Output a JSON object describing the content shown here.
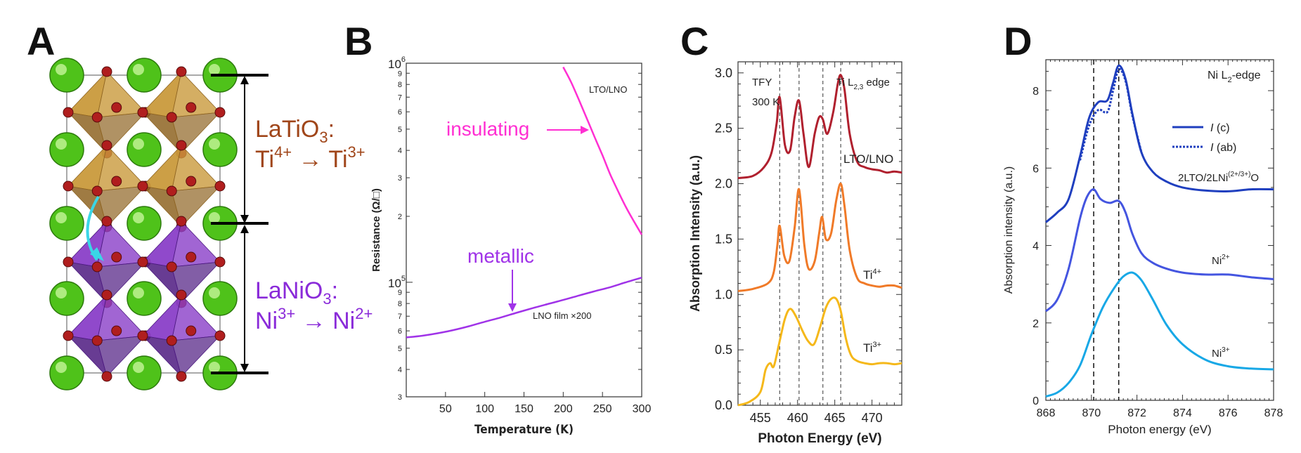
{
  "panels": {
    "A": {
      "letter": "A",
      "top_formula_line1": "LaTiO",
      "top_formula_sub": "3",
      "top_formula_colon": ":",
      "top_line2_a": "Ti",
      "top_line2_sup1": "4+",
      "top_line2_arrow": " → Ti",
      "top_line2_sup2": "3+",
      "bot_formula_line1": "LaNiO",
      "bot_formula_sub": "3",
      "bot_formula_colon": ":",
      "bot_line2_a": "Ni",
      "bot_line2_sup1": "3+",
      "bot_line2_arrow": " → Ni",
      "bot_line2_sup2": "2+",
      "colors": {
        "ti_octahedra": "#c99a3c",
        "ni_octahedra": "#8a3fc8",
        "la_atom": "#4fc21a",
        "o_atom": "#b01e1e",
        "ti_text": "#a0461a",
        "ni_text": "#8a2bd9",
        "arrow": "#3ad6e6"
      }
    },
    "B": {
      "letter": "B",
      "annotation_insulating": "insulating",
      "annotation_metallic": "metallic",
      "annotation_colors": {
        "insulating": "#ff2fd2",
        "metallic": "#a033e8"
      }
    },
    "C": {
      "letter": "C"
    },
    "D": {
      "letter": "D"
    }
  },
  "chart_data": [
    {
      "type": "line",
      "panel": "B",
      "xlabel": "Temperature (K)",
      "ylabel": "Resistance (Ω/□)",
      "xlim": [
        0,
        300
      ],
      "ylim": [
        30000,
        1000000
      ],
      "y_scale": "log",
      "x_ticks": [
        50,
        100,
        150,
        200,
        250,
        300
      ],
      "y_ticks": [
        {
          "value": 100000,
          "label": "10",
          "sup": "5"
        },
        {
          "value": 1000000,
          "label": "10",
          "sup": "6"
        }
      ],
      "y_minor_labels": [
        "3",
        "4",
        "5",
        "6",
        "7",
        "8",
        "9",
        "2",
        "3",
        "4",
        "5",
        "6",
        "7",
        "8",
        "9"
      ],
      "series": [
        {
          "name": "LTO/LNO",
          "color": "#ff2fd2",
          "x": [
            200,
            210,
            220,
            230,
            240,
            250,
            260,
            270,
            280,
            290,
            300
          ],
          "y": [
            960000,
            820000,
            680000,
            560000,
            460000,
            380000,
            310000,
            260000,
            220000,
            190000,
            165000
          ]
        },
        {
          "name": "LNO film ×200",
          "color": "#a033e8",
          "x": [
            0,
            20,
            40,
            60,
            80,
            100,
            120,
            140,
            160,
            180,
            200,
            220,
            240,
            260,
            280,
            300
          ],
          "y": [
            56000,
            57000,
            58500,
            60500,
            63000,
            66000,
            69000,
            72500,
            76000,
            79500,
            83000,
            87000,
            91000,
            95000,
            100000,
            105000
          ]
        }
      ]
    },
    {
      "type": "line",
      "panel": "C",
      "xlabel": "Photon Energy (eV)",
      "ylabel": "Absorption Intensity (a.u.)",
      "xlim": [
        452,
        474
      ],
      "ylim": [
        0,
        3.1
      ],
      "x_ticks": [
        455,
        460,
        465,
        470
      ],
      "y_ticks": [
        0.0,
        0.5,
        1.0,
        1.5,
        2.0,
        2.5,
        3.0
      ],
      "y_tick_labels": [
        "0.0",
        "0.5",
        "1.0",
        "1.5",
        "2.0",
        "2.5",
        "3.0"
      ],
      "annotations": [
        "TFY",
        "300 K",
        "Ti L2,3 edge"
      ],
      "dashed_lines_x": [
        457.6,
        460.2,
        463.4,
        465.8
      ],
      "series": [
        {
          "name": "LTO/LNO",
          "color": "#b0202e",
          "x": [
            452,
            454,
            455.5,
            456.5,
            457.2,
            457.6,
            458.3,
            459.0,
            459.6,
            460.2,
            460.8,
            461.5,
            462.3,
            462.9,
            463.4,
            464.0,
            464.8,
            465.4,
            465.8,
            466.3,
            467.0,
            468.0,
            469.0,
            470.0,
            471.0,
            472.0,
            473.0,
            474.0
          ],
          "y": [
            2.05,
            2.07,
            2.15,
            2.28,
            2.55,
            2.78,
            2.35,
            2.3,
            2.6,
            2.75,
            2.45,
            2.15,
            2.45,
            2.6,
            2.58,
            2.45,
            2.65,
            2.9,
            2.98,
            2.85,
            2.45,
            2.2,
            2.15,
            2.13,
            2.12,
            2.1,
            2.11,
            2.1
          ]
        },
        {
          "name": "Ti4+",
          "color": "#f07a28",
          "x": [
            452,
            454,
            456,
            456.8,
            457.3,
            457.6,
            458.2,
            458.9,
            459.6,
            460.2,
            460.9,
            461.5,
            462.3,
            462.9,
            463.3,
            463.8,
            464.5,
            465.2,
            465.8,
            466.3,
            467.0,
            468.0,
            469.0,
            470.0,
            471.0,
            472.0,
            473.0,
            474.0
          ],
          "y": [
            1.03,
            1.05,
            1.1,
            1.2,
            1.45,
            1.62,
            1.35,
            1.3,
            1.6,
            1.95,
            1.45,
            1.23,
            1.3,
            1.55,
            1.7,
            1.5,
            1.55,
            1.85,
            2.0,
            1.8,
            1.4,
            1.15,
            1.1,
            1.08,
            1.07,
            1.08,
            1.08,
            1.06
          ]
        },
        {
          "name": "Ti3+",
          "color": "#f5b81a",
          "x": [
            452,
            453.5,
            455,
            455.7,
            456.3,
            456.8,
            457.5,
            458.3,
            459.0,
            459.8,
            460.6,
            461.4,
            462.2,
            463.0,
            463.8,
            464.5,
            465.2,
            465.8,
            466.5,
            467.2,
            468.0,
            469.0,
            470.0,
            471.0,
            472.0,
            473.0,
            474.0
          ],
          "y": [
            0.0,
            0.03,
            0.12,
            0.32,
            0.38,
            0.35,
            0.55,
            0.78,
            0.87,
            0.8,
            0.68,
            0.58,
            0.55,
            0.7,
            0.88,
            0.96,
            0.96,
            0.85,
            0.6,
            0.45,
            0.4,
            0.38,
            0.37,
            0.38,
            0.38,
            0.37,
            0.38
          ]
        }
      ],
      "series_labels": [
        {
          "text": "LTO/LNO",
          "sup": ""
        },
        {
          "text": "Ti",
          "sup": "4+"
        },
        {
          "text": "Ti",
          "sup": "3+"
        }
      ]
    },
    {
      "type": "line",
      "panel": "D",
      "xlabel": "Photon energy (eV)",
      "ylabel": "Absorption intensity (a.u.)",
      "xlim": [
        868,
        878
      ],
      "ylim": [
        0,
        8.8
      ],
      "x_ticks": [
        868,
        870,
        872,
        874,
        876,
        878
      ],
      "y_ticks": [
        0,
        2,
        4,
        6,
        8
      ],
      "annotation": "Ni L2-edge",
      "dashed_lines_x": [
        870.1,
        871.2
      ],
      "legend": [
        {
          "label": "I",
          "suffix": " (c)",
          "style": "solid",
          "color": "#1f3fbf"
        },
        {
          "label": "I",
          "suffix": " (ab)",
          "style": "dotted",
          "color": "#1f3fbf"
        }
      ],
      "series": [
        {
          "name": "2LTO/2LNi(2+/3+)O I(c)",
          "color": "#1f3fbf",
          "style": "solid",
          "x": [
            868.0,
            868.5,
            869.0,
            869.5,
            869.9,
            870.3,
            870.7,
            870.95,
            871.2,
            871.5,
            871.8,
            872.2,
            872.7,
            873.3,
            874.0,
            875.0,
            876.0,
            877.0,
            878.0
          ],
          "y": [
            4.6,
            4.85,
            5.2,
            6.3,
            7.3,
            7.7,
            7.75,
            8.2,
            8.65,
            8.3,
            7.4,
            6.4,
            5.9,
            5.65,
            5.5,
            5.42,
            5.4,
            5.45,
            5.45
          ]
        },
        {
          "name": "2LTO/2LNi(2+/3+)O I(ab)",
          "color": "#1f3fbf",
          "style": "dotted",
          "x": [
            869.5,
            869.9,
            870.3,
            870.7,
            870.95,
            871.2,
            871.5,
            871.8,
            872.2
          ],
          "y": [
            6.2,
            7.1,
            7.5,
            7.45,
            8.0,
            8.55,
            8.25,
            7.35,
            6.4
          ]
        },
        {
          "name": "Ni2+",
          "color": "#4455e0",
          "style": "solid",
          "x": [
            868.0,
            868.5,
            869.0,
            869.5,
            869.8,
            870.1,
            870.4,
            870.8,
            871.2,
            871.5,
            871.8,
            872.2,
            872.7,
            873.3,
            874.0,
            875.0,
            876.0,
            877.0,
            878.0
          ],
          "y": [
            2.3,
            2.6,
            3.4,
            4.7,
            5.25,
            5.45,
            5.2,
            5.1,
            5.15,
            4.85,
            4.3,
            3.8,
            3.55,
            3.4,
            3.3,
            3.25,
            3.25,
            3.18,
            3.13
          ]
        },
        {
          "name": "Ni3+",
          "color": "#18a8e6",
          "style": "solid",
          "x": [
            868.0,
            868.5,
            869.0,
            869.5,
            870.0,
            870.5,
            871.0,
            871.4,
            871.8,
            872.2,
            872.7,
            873.3,
            874.0,
            875.0,
            876.0,
            877.0,
            878.0
          ],
          "y": [
            0.1,
            0.2,
            0.45,
            0.9,
            1.7,
            2.4,
            2.9,
            3.2,
            3.3,
            3.1,
            2.6,
            1.95,
            1.45,
            1.05,
            0.88,
            0.82,
            0.8
          ]
        }
      ],
      "series_labels": [
        {
          "text": "2LTO/2LNi",
          "sup": "(2+/3+)",
          "tail": "O"
        },
        {
          "text": "Ni",
          "sup": "2+",
          "tail": ""
        },
        {
          "text": "Ni",
          "sup": "3+",
          "tail": ""
        }
      ]
    }
  ]
}
